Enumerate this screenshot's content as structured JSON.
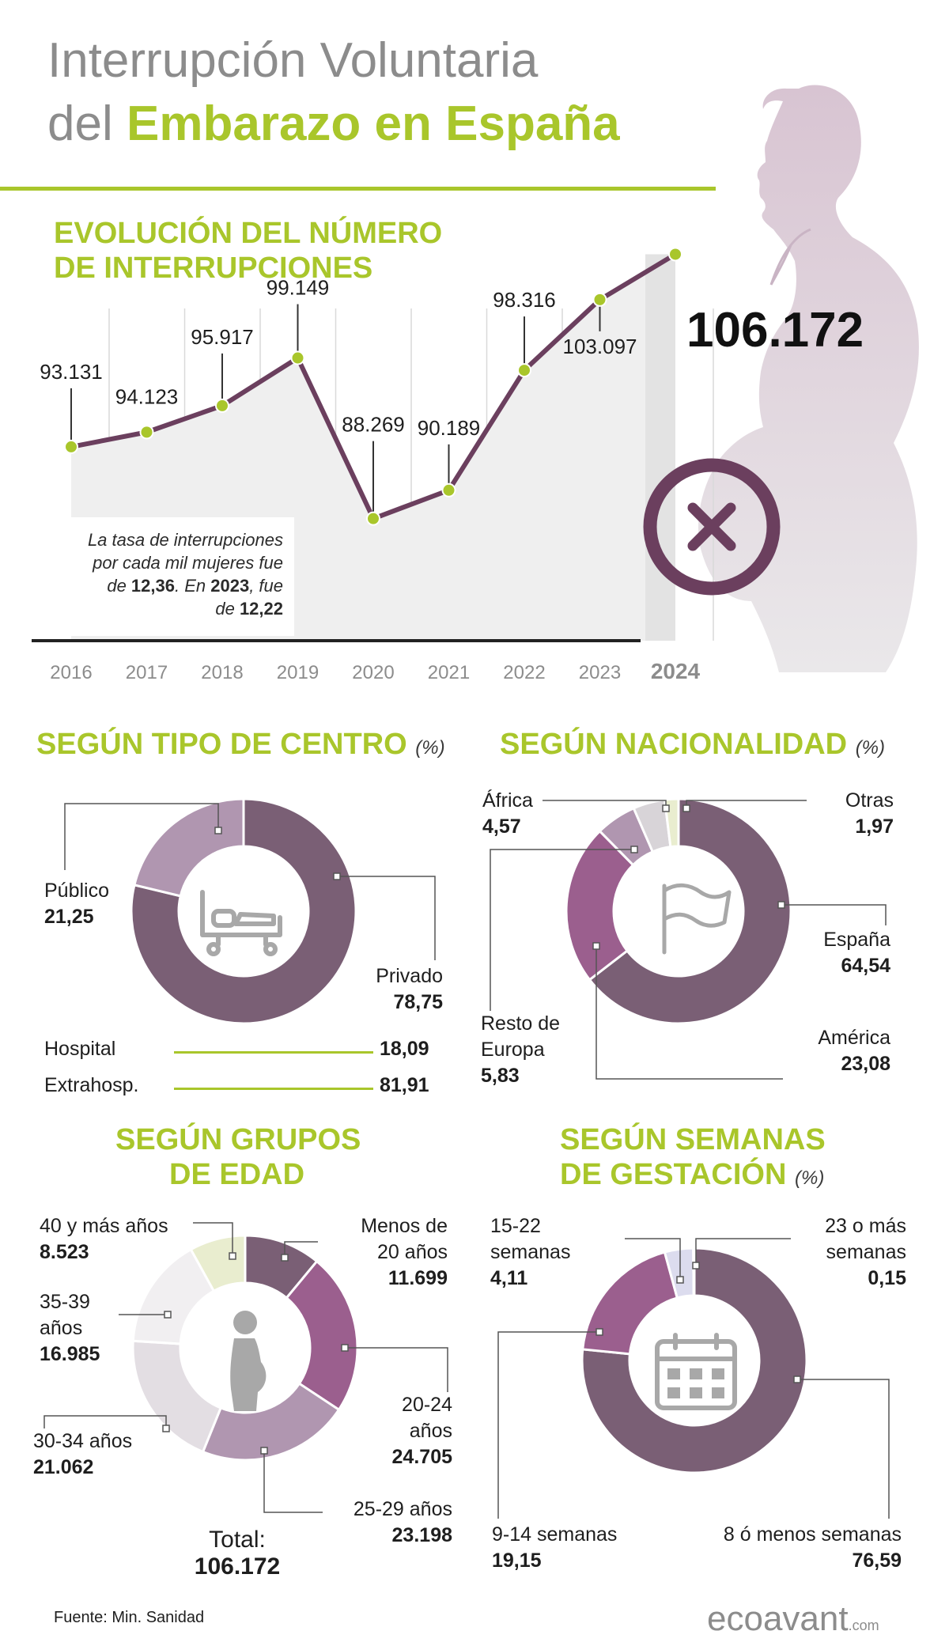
{
  "title": {
    "line1": "Interrupción Voluntaria",
    "line2_prefix": "del",
    "line2_highlight": "Embarazo en España"
  },
  "colors": {
    "green": "#a9c62b",
    "plum": "#7a5f75",
    "purple": "#9b5f8e",
    "mauve": "#b096b0",
    "grey": "#8c8c8c",
    "line": "#6b3f5e"
  },
  "evolution": {
    "heading_line1": "EVOLUCIÓN DEL NÚMERO",
    "heading_line2": "DE INTERRUPCIONES",
    "highlight_value": "106.172",
    "note_line1": "La tasa de interrupciones",
    "note_line2": "por cada mil mujeres fue",
    "note_line3_a": "de ",
    "note_line3_b": "12,36",
    "note_line3_c": ". En ",
    "note_line3_d": "2023",
    "note_line3_e": ", fue",
    "note_line4_a": "de ",
    "note_line4_b": "12,22"
  },
  "centro": {
    "heading": "SEGÚN TIPO DE CENTRO",
    "unit": "(%)",
    "publico_label": "Público",
    "publico_value": "21,25",
    "privado_label": "Privado",
    "privado_value": "78,75",
    "hospital_label": "Hospital",
    "hospital_value": "18,09",
    "extra_label": "Extrahosp.",
    "extra_value": "81,91",
    "icon": "hospital-bed-icon"
  },
  "nacionalidad": {
    "heading": "SEGÚN NACIONALIDAD",
    "unit": "(%)",
    "africa_label": "África",
    "africa_value": "4,57",
    "otras_label": "Otras",
    "otras_value": "1,97",
    "espana_label": "España",
    "espana_value": "64,54",
    "america_label": "América",
    "america_value": "23,08",
    "resto_label1": "Resto de",
    "resto_label2": "Europa",
    "resto_value": "5,83",
    "icon": "flag-icon"
  },
  "edad": {
    "heading_line1": "SEGÚN GRUPOS",
    "heading_line2": "DE EDAD",
    "g40_label": "40 y más años",
    "g40_value": "8.523",
    "g35_label1": "35-39",
    "g35_label2": "años",
    "g35_value": "16.985",
    "g30_label": "30-34 años",
    "g30_value": "21.062",
    "g20_label1": "Menos de",
    "g20_label2": "20 años",
    "g20_value": "11.699",
    "g2024_label1": "20-24",
    "g2024_label2": "años",
    "g2024_value": "24.705",
    "g25_label": "25-29 años",
    "g25_value": "23.198",
    "total_label": "Total:",
    "total_value": "106.172",
    "icon": "pregnant-woman-icon"
  },
  "semanas": {
    "heading_line1": "SEGÚN SEMANAS",
    "heading_line2": "DE GESTACIÓN",
    "unit": "(%)",
    "s1522_label1": "15-22",
    "s1522_label2": "semanas",
    "s1522_value": "4,11",
    "s23_label1": "23 o más",
    "s23_label2": "semanas",
    "s23_value": "0,15",
    "s914_label": "9-14 semanas",
    "s914_value": "19,15",
    "s8_label": "8 ó menos semanas",
    "s8_value": "76,59",
    "icon": "calendar-icon"
  },
  "footer": {
    "source": "Fuente: Min. Sanidad",
    "logo": "ecoavant",
    "logo_suffix": ".com"
  },
  "chart_data": [
    {
      "type": "line",
      "title": "EVOLUCIÓN DEL NÚMERO DE INTERRUPCIONES",
      "x": [
        "2016",
        "2017",
        "2018",
        "2019",
        "2020",
        "2021",
        "2022",
        "2023",
        "2024"
      ],
      "values": [
        93131,
        94123,
        95917,
        99149,
        88269,
        90189,
        98316,
        103097,
        106172
      ],
      "labels": [
        "93.131",
        "94.123",
        "95.917",
        "99.149",
        "88.269",
        "90.189",
        "98.316",
        "103.097",
        "106.172"
      ],
      "ylim": [
        80000,
        110000
      ],
      "grid": "vertical"
    },
    {
      "type": "pie",
      "title": "SEGÚN TIPO DE CENTRO (%)",
      "categories": [
        "Privado",
        "Público"
      ],
      "values": [
        78.75,
        21.25
      ],
      "colors": [
        "#7a5f75",
        "#b096b0"
      ]
    },
    {
      "type": "pie",
      "title": "SEGÚN NACIONALIDAD (%)",
      "categories": [
        "España",
        "América",
        "Resto de Europa",
        "África",
        "Otras"
      ],
      "values": [
        64.54,
        23.08,
        5.83,
        4.57,
        1.97
      ],
      "colors": [
        "#7a5f75",
        "#9b5f8e",
        "#b096b0",
        "#d8d4d8",
        "#e9edcf"
      ]
    },
    {
      "type": "pie",
      "title": "SEGÚN GRUPOS DE EDAD",
      "categories": [
        "Menos de 20 años",
        "20-24 años",
        "25-29 años",
        "30-34 años",
        "35-39 años",
        "40 y más años"
      ],
      "values": [
        11699,
        24705,
        23198,
        21062,
        16985,
        8523
      ],
      "colors": [
        "#7a5f75",
        "#9b5f8e",
        "#b096b0",
        "#e3dee3",
        "#f1eff1",
        "#e9edcf"
      ]
    },
    {
      "type": "pie",
      "title": "SEGÚN SEMANAS DE GESTACIÓN (%)",
      "categories": [
        "8 ó menos semanas",
        "9-14 semanas",
        "15-22 semanas",
        "23 o más semanas"
      ],
      "values": [
        76.59,
        19.15,
        4.11,
        0.15
      ],
      "colors": [
        "#7a5f75",
        "#9b5f8e",
        "#dcdcee",
        "#c9b0c9"
      ]
    }
  ]
}
